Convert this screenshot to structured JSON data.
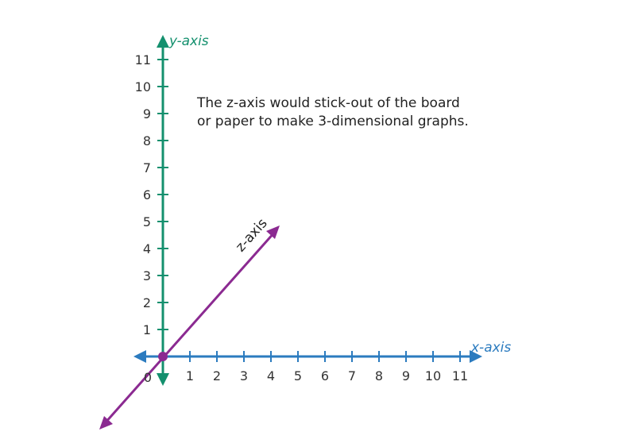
{
  "colors": {
    "x_axis": "#2b7bbf",
    "y_axis": "#14906e",
    "z_axis": "#8b2a91",
    "text": "#222222"
  },
  "axes": {
    "x_label": "x-axis",
    "y_label": "y-axis",
    "z_label": "z-axis",
    "origin_label": "0",
    "x_ticks": [
      "1",
      "2",
      "3",
      "4",
      "5",
      "6",
      "7",
      "8",
      "9",
      "10",
      "11"
    ],
    "y_ticks": [
      "1",
      "2",
      "3",
      "4",
      "5",
      "6",
      "7",
      "8",
      "9",
      "10",
      "11"
    ]
  },
  "note": {
    "line1": "The z-axis would stick-out of the board",
    "line2": "or paper to make 3-dimensional graphs."
  }
}
